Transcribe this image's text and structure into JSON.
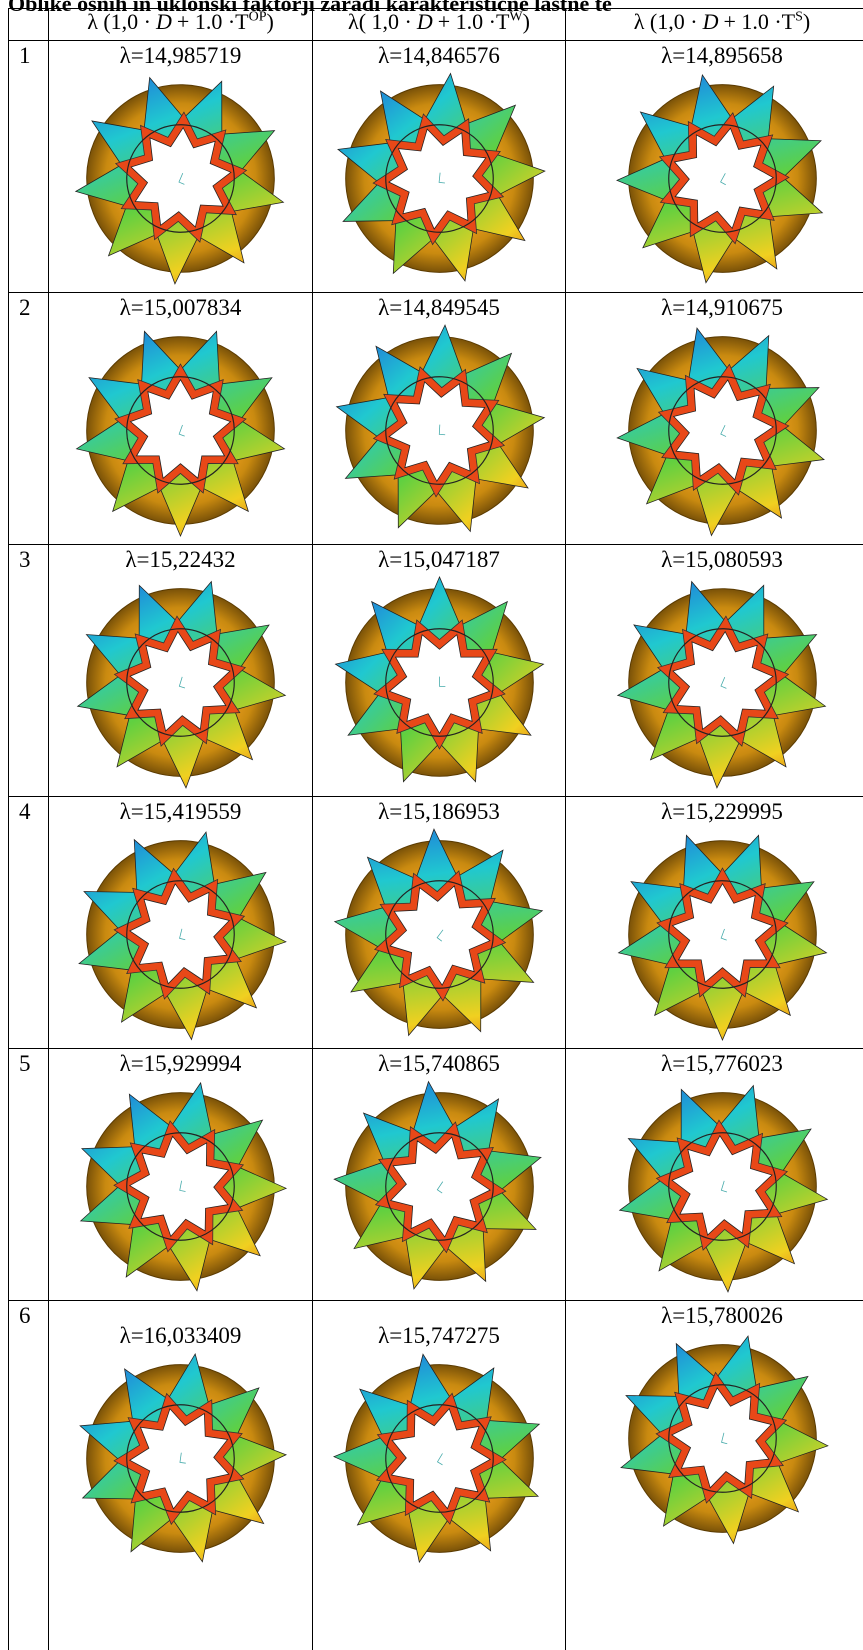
{
  "caption": "Oblike osnih in uklonski faktorji zaradi karakteristične lastne te",
  "table": {
    "header": [
      {
        "lead": "λ (1,0 ·",
        "var": "D",
        "mid": "+ 1.0 ·T",
        "sup": "OP",
        "end": ")"
      },
      {
        "lead": "λ( 1,0 ·",
        "var": "D",
        "mid": "+ 1.0 ·T",
        "sup": "W",
        "end": ")"
      },
      {
        "lead": "λ (1,0 ·",
        "var": "D",
        "mid": "+ 1.0 ·T",
        "sup": "S",
        "end": ")"
      }
    ],
    "rows": [
      [
        "1",
        "λ=14,985719",
        "λ=14,846576",
        "λ=14,895658"
      ],
      [
        "2",
        "λ=15,007834",
        "λ=14,849545",
        "λ=14,910675"
      ],
      [
        "3",
        "λ=15,22432",
        "λ=15,047187",
        "λ=15,080593"
      ],
      [
        "4",
        "λ=15,419559",
        "λ=15,186953",
        "λ=15,229995"
      ],
      [
        "5",
        "λ=15,929994",
        "λ=15,740865",
        "λ=15,776023"
      ],
      [
        "6",
        "λ=16,033409",
        "λ=15,747275",
        "λ=15,780026"
      ]
    ]
  }
}
